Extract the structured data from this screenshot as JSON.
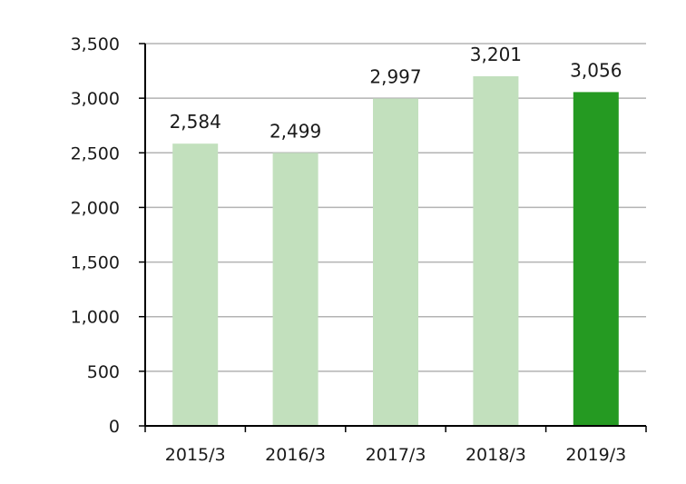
{
  "chart_data": {
    "type": "bar",
    "categories": [
      "2015/3",
      "2016/3",
      "2017/3",
      "2018/3",
      "2019/3"
    ],
    "values": [
      2584,
      2499,
      2997,
      3201,
      3056
    ],
    "value_labels": [
      "2,584",
      "2,499",
      "2,997",
      "3,201",
      "3,056"
    ],
    "ylim": [
      0,
      3500
    ],
    "yticks": [
      0,
      500,
      1000,
      1500,
      2000,
      2500,
      3000,
      3500
    ],
    "ytick_labels": [
      "0",
      "500",
      "1,000",
      "1,500",
      "2,000",
      "2,500",
      "3,000",
      "3,500"
    ],
    "title": "",
    "xlabel": "",
    "ylabel": "",
    "grid": true,
    "colors": {
      "bar_default": "#c2e0bd",
      "bar_highlight": "#259a22",
      "grid": "#b3b3b3",
      "axis": "#000000"
    },
    "highlight_index": 4
  }
}
